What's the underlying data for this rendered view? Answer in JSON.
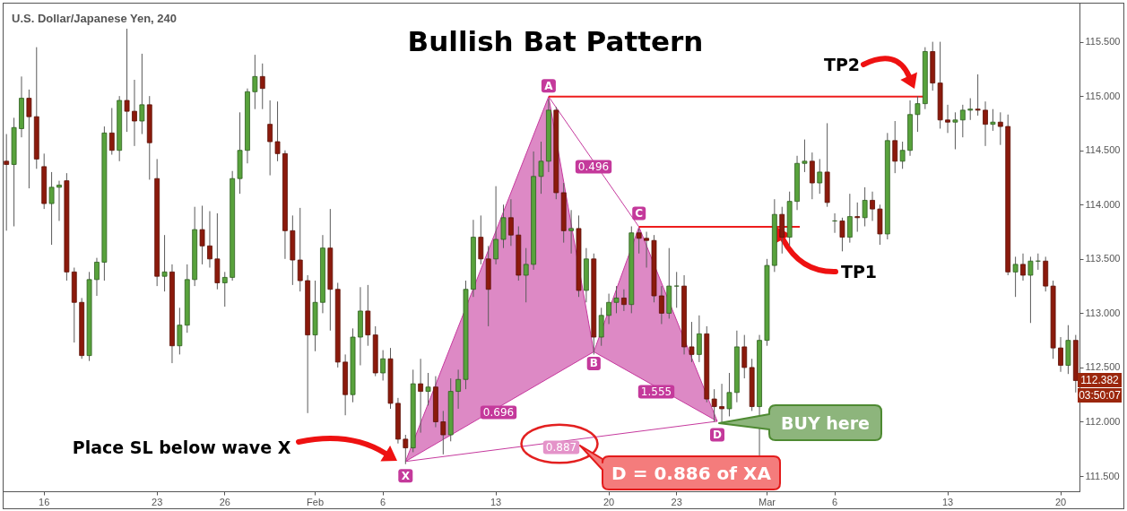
{
  "chart_data": {
    "type": "candlestick",
    "title": "Bullish Bat Pattern",
    "subtitle": "U.S. Dollar/Japanese Yen, 240",
    "categories": [
      null,
      null,
      null,
      null,
      null,
      "16",
      null,
      null,
      null,
      null,
      null,
      null,
      null,
      null,
      null,
      null,
      null,
      null,
      null,
      null,
      "23",
      null,
      null,
      null,
      null,
      null,
      null,
      null,
      null,
      "26",
      null,
      null,
      null,
      null,
      null,
      null,
      null,
      null,
      null,
      null,
      null,
      "Feb",
      null,
      null,
      null,
      null,
      null,
      null,
      null,
      null,
      "6",
      null,
      null,
      null,
      null,
      null,
      null,
      null,
      null,
      null,
      null,
      null,
      null,
      null,
      null,
      "13",
      null,
      null,
      null,
      null,
      null,
      null,
      null,
      null,
      null,
      null,
      null,
      null,
      null,
      null,
      "20",
      null,
      null,
      null,
      null,
      null,
      null,
      null,
      null,
      "23",
      null,
      null,
      null,
      null,
      null,
      null,
      null,
      null,
      null,
      null,
      null,
      "Mar",
      null,
      null,
      null,
      null,
      null,
      null,
      null,
      null,
      "6",
      null,
      null,
      null,
      null,
      null,
      null,
      null,
      null,
      null,
      null,
      null,
      null,
      null,
      null,
      "13",
      null,
      null,
      null,
      null,
      null,
      null,
      null,
      null,
      null,
      null,
      null,
      null,
      null,
      null,
      "20",
      null,
      null
    ],
    "ohlc": [
      [
        114.4,
        114.65,
        113.76,
        114.37
      ],
      [
        114.37,
        114.8,
        113.8,
        114.71
      ],
      [
        114.7,
        115.18,
        114.62,
        114.98
      ],
      [
        114.98,
        115.06,
        114.15,
        114.81
      ],
      [
        114.81,
        115.45,
        114.33,
        114.42
      ],
      [
        114.35,
        114.47,
        113.96,
        114.01
      ],
      [
        114.01,
        114.3,
        113.63,
        114.16
      ],
      [
        114.16,
        114.22,
        113.85,
        114.18
      ],
      [
        114.22,
        114.29,
        113.3,
        113.38
      ],
      [
        113.38,
        113.42,
        112.73,
        113.1
      ],
      [
        113.1,
        113.14,
        112.58,
        112.61
      ],
      [
        112.61,
        113.38,
        112.56,
        113.31
      ],
      [
        113.31,
        113.51,
        113.16,
        113.47
      ],
      [
        113.47,
        114.72,
        113.3,
        114.66
      ],
      [
        114.66,
        114.89,
        114.46,
        114.5
      ],
      [
        114.5,
        115.0,
        114.4,
        114.96
      ],
      [
        114.96,
        115.62,
        114.67,
        114.86
      ],
      [
        114.86,
        115.15,
        114.54,
        114.77
      ],
      [
        114.77,
        115.39,
        114.65,
        114.92
      ],
      [
        114.92,
        115.0,
        114.23,
        114.57
      ],
      [
        114.24,
        114.42,
        113.25,
        113.34
      ],
      [
        113.34,
        113.72,
        113.2,
        113.38
      ],
      [
        113.38,
        113.45,
        112.54,
        112.7
      ],
      [
        112.7,
        113.05,
        112.62,
        112.89
      ],
      [
        112.89,
        113.45,
        112.82,
        113.31
      ],
      [
        113.31,
        113.98,
        113.25,
        113.77
      ],
      [
        113.77,
        113.99,
        113.45,
        113.62
      ],
      [
        113.62,
        113.94,
        113.42,
        113.5
      ],
      [
        113.5,
        113.92,
        113.22,
        113.28
      ],
      [
        113.28,
        113.38,
        113.06,
        113.33
      ],
      [
        113.33,
        114.31,
        113.3,
        114.24
      ],
      [
        114.24,
        114.85,
        114.1,
        114.5
      ],
      [
        114.5,
        115.07,
        114.38,
        115.04
      ],
      [
        115.04,
        115.38,
        114.88,
        115.18
      ],
      [
        115.18,
        115.3,
        114.88,
        115.07
      ],
      [
        114.74,
        114.96,
        114.27,
        114.58
      ],
      [
        114.58,
        114.95,
        114.4,
        114.47
      ],
      [
        114.47,
        114.5,
        113.5,
        113.76
      ],
      [
        113.76,
        113.9,
        113.26,
        113.49
      ],
      [
        113.49,
        113.97,
        113.2,
        113.3
      ],
      [
        113.3,
        113.35,
        112.08,
        112.8
      ],
      [
        112.8,
        113.3,
        112.65,
        113.1
      ],
      [
        113.1,
        113.72,
        113.0,
        113.6
      ],
      [
        113.6,
        113.96,
        112.84,
        113.22
      ],
      [
        113.22,
        113.28,
        112.5,
        112.55
      ],
      [
        112.55,
        112.62,
        112.06,
        112.25
      ],
      [
        112.25,
        112.86,
        112.18,
        112.78
      ],
      [
        112.78,
        113.24,
        112.52,
        113.02
      ],
      [
        113.02,
        113.26,
        112.7,
        112.8
      ],
      [
        112.8,
        112.88,
        112.42,
        112.45
      ],
      [
        112.45,
        112.66,
        112.38,
        112.58
      ],
      [
        112.58,
        112.68,
        112.12,
        112.17
      ],
      [
        112.17,
        112.22,
        111.8,
        111.84
      ],
      [
        111.84,
        111.88,
        111.61,
        111.76
      ],
      [
        111.76,
        112.48,
        111.72,
        112.35
      ],
      [
        112.35,
        112.58,
        111.9,
        112.28
      ],
      [
        112.28,
        112.45,
        112.15,
        112.32
      ],
      [
        112.32,
        112.42,
        111.95,
        112.0
      ],
      [
        112.0,
        112.1,
        111.7,
        111.88
      ],
      [
        111.88,
        112.4,
        111.82,
        112.28
      ],
      [
        112.28,
        112.48,
        112.12,
        112.39
      ],
      [
        112.39,
        113.3,
        112.3,
        113.22
      ],
      [
        113.22,
        113.86,
        113.15,
        113.7
      ],
      [
        113.7,
        113.9,
        113.45,
        113.5
      ],
      [
        113.5,
        113.62,
        112.88,
        113.22
      ],
      [
        113.5,
        114.17,
        113.45,
        113.68
      ],
      [
        113.68,
        114.0,
        113.6,
        113.88
      ],
      [
        113.88,
        114.05,
        113.62,
        113.72
      ],
      [
        113.72,
        113.8,
        113.3,
        113.35
      ],
      [
        113.35,
        113.6,
        113.1,
        113.45
      ],
      [
        113.45,
        114.49,
        113.4,
        114.26
      ],
      [
        114.26,
        114.58,
        114.1,
        114.4
      ],
      [
        114.4,
        114.97,
        114.3,
        114.87
      ],
      [
        114.87,
        114.9,
        114.05,
        114.11
      ],
      [
        114.11,
        114.2,
        113.65,
        113.76
      ],
      [
        113.76,
        113.95,
        113.55,
        113.78
      ],
      [
        113.78,
        113.9,
        113.15,
        113.21
      ],
      [
        113.21,
        113.6,
        113.1,
        113.5
      ],
      [
        113.5,
        113.55,
        112.62,
        112.78
      ],
      [
        112.78,
        113.05,
        112.7,
        112.98
      ],
      [
        112.98,
        113.18,
        112.9,
        113.1
      ],
      [
        113.1,
        113.25,
        113.0,
        113.14
      ],
      [
        113.14,
        113.22,
        113.02,
        113.08
      ],
      [
        113.08,
        113.8,
        113.0,
        113.74
      ],
      [
        113.74,
        113.78,
        113.55,
        113.69
      ],
      [
        113.69,
        113.75,
        113.42,
        113.67
      ],
      [
        113.67,
        113.72,
        113.1,
        113.16
      ],
      [
        113.16,
        113.25,
        112.9,
        113.0
      ],
      [
        113.0,
        113.6,
        112.95,
        113.25
      ],
      [
        113.25,
        113.38,
        113.05,
        113.25
      ],
      [
        113.25,
        113.35,
        112.62,
        112.69
      ],
      [
        112.69,
        112.92,
        112.55,
        112.62
      ],
      [
        112.62,
        112.98,
        112.55,
        112.81
      ],
      [
        112.81,
        112.88,
        112.18,
        112.21
      ],
      [
        112.21,
        112.3,
        112.0,
        112.14
      ],
      [
        112.14,
        112.35,
        111.98,
        112.12
      ],
      [
        112.12,
        112.45,
        112.05,
        112.27
      ],
      [
        112.27,
        112.84,
        112.18,
        112.69
      ],
      [
        112.69,
        112.8,
        112.4,
        112.5
      ],
      [
        112.5,
        112.58,
        112.1,
        112.14
      ],
      [
        112.14,
        112.8,
        111.69,
        112.75
      ],
      [
        112.75,
        113.5,
        112.7,
        113.44
      ],
      [
        113.44,
        114.05,
        113.38,
        113.91
      ],
      [
        113.91,
        113.98,
        113.55,
        113.7
      ],
      [
        113.7,
        114.12,
        113.62,
        114.03
      ],
      [
        114.03,
        114.45,
        113.95,
        114.38
      ],
      [
        114.38,
        114.6,
        114.3,
        114.4
      ],
      [
        114.4,
        114.48,
        114.05,
        114.2
      ],
      [
        114.2,
        114.42,
        114.1,
        114.3
      ],
      [
        114.3,
        114.75,
        113.98,
        114.02
      ],
      [
        113.85,
        113.92,
        113.74,
        113.85
      ],
      [
        113.85,
        113.88,
        113.57,
        113.7
      ],
      [
        113.7,
        114.1,
        113.65,
        113.89
      ],
      [
        113.89,
        114.02,
        113.75,
        113.88
      ],
      [
        113.88,
        114.16,
        113.8,
        114.04
      ],
      [
        114.04,
        114.12,
        113.85,
        113.96
      ],
      [
        113.96,
        114.0,
        113.63,
        113.73
      ],
      [
        113.73,
        114.66,
        113.68,
        114.59
      ],
      [
        114.59,
        114.77,
        114.29,
        114.4
      ],
      [
        114.4,
        114.58,
        114.33,
        114.5
      ],
      [
        114.5,
        114.96,
        114.45,
        114.83
      ],
      [
        114.83,
        115.0,
        114.67,
        114.93
      ],
      [
        114.93,
        115.45,
        114.88,
        115.41
      ],
      [
        115.41,
        115.5,
        115.05,
        115.12
      ],
      [
        115.12,
        115.5,
        114.7,
        114.78
      ],
      [
        114.78,
        114.92,
        114.66,
        114.76
      ],
      [
        114.76,
        114.85,
        114.51,
        114.78
      ],
      [
        114.78,
        114.92,
        114.62,
        114.87
      ],
      [
        114.87,
        114.98,
        114.78,
        114.88
      ],
      [
        114.88,
        115.2,
        114.82,
        114.87
      ],
      [
        114.87,
        114.95,
        114.54,
        114.74
      ],
      [
        114.74,
        114.88,
        114.68,
        114.76
      ],
      [
        114.76,
        114.85,
        114.55,
        114.72
      ],
      [
        114.72,
        114.83,
        113.35,
        113.38
      ],
      [
        113.38,
        113.52,
        113.15,
        113.45
      ],
      [
        113.45,
        113.55,
        113.3,
        113.35
      ],
      [
        113.35,
        113.52,
        112.91,
        113.48
      ],
      [
        113.48,
        113.55,
        113.4,
        113.48
      ],
      [
        113.48,
        113.52,
        113.2,
        113.25
      ],
      [
        113.25,
        113.3,
        112.58,
        112.68
      ],
      [
        112.68,
        112.78,
        112.46,
        112.52
      ],
      [
        112.52,
        112.89,
        112.44,
        112.75
      ],
      [
        112.75,
        112.8,
        112.27,
        112.38
      ]
    ],
    "ylim": [
      111.36,
      115.86
    ],
    "yticks": [
      {
        "value": 111.5,
        "label": "111.500"
      },
      {
        "value": 112,
        "label": "112.000"
      },
      {
        "value": 112.5,
        "label": "112.500"
      },
      {
        "value": 113,
        "label": "113.000"
      },
      {
        "value": 113.5,
        "label": "113.500"
      },
      {
        "value": 114,
        "label": "114.000"
      },
      {
        "value": 114.5,
        "label": "114.500"
      },
      {
        "value": 115,
        "label": "115.000"
      },
      {
        "value": 115.5,
        "label": "115.500"
      }
    ],
    "annotations": [
      {
        "text": "X",
        "y": 111.61
      },
      {
        "text": "A",
        "y": 114.97
      },
      {
        "text": "B",
        "y": 112.62
      },
      {
        "text": "C",
        "y": 113.77
      },
      {
        "text": "D",
        "y": 111.98
      },
      "0.696",
      "0.496",
      "1.555",
      "0.887",
      "D = 0.886 of XA",
      "BUY here",
      {
        "text": "TP1",
        "y": 113.77
      },
      "TP2",
      "Place SL below wave X",
      "112.382",
      "03:50:07"
    ]
  }
}
